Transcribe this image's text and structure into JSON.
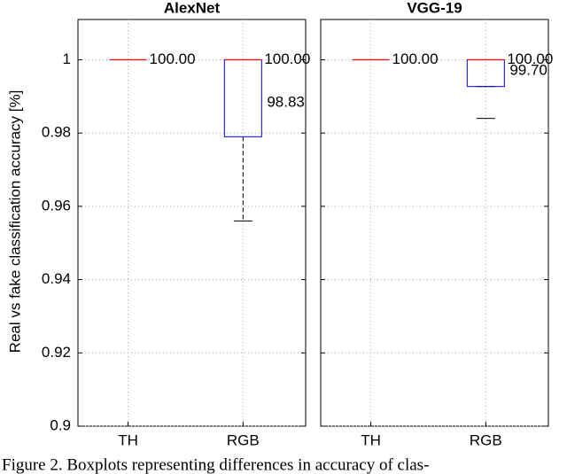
{
  "chart_data": [
    {
      "type": "box",
      "title": "AlexNet",
      "ylabel": "Real vs fake classification accuracy [%]",
      "categories": [
        "TH",
        "RGB"
      ],
      "boxes": [
        {
          "median": 1,
          "q1": 1,
          "q3": 1,
          "whisker_low": 1,
          "whisker_high": 1,
          "median_label": "100.00"
        },
        {
          "median": 1,
          "q1": 0.979,
          "q3": 1,
          "whisker_low": 0.956,
          "whisker_high": 1,
          "median_label": "100.00",
          "mean": 0.9883,
          "mean_label": "98.83"
        }
      ],
      "ylim": [
        0.9,
        1.011
      ],
      "yticks": [
        0.9,
        0.92,
        0.94,
        0.96,
        0.98,
        1
      ],
      "grid": true,
      "box_color": "#0000ff",
      "median_color": "#ff0000",
      "whisker_color": "#000000"
    },
    {
      "type": "box",
      "title": "VGG-19",
      "categories": [
        "TH",
        "RGB"
      ],
      "boxes": [
        {
          "median": 1,
          "q1": 1,
          "q3": 1,
          "whisker_low": 1,
          "whisker_high": 1,
          "median_label": "100.00"
        },
        {
          "median": 1,
          "q1": 0.9927,
          "q3": 1,
          "whisker_low": 0.9927,
          "whisker_high": 1,
          "median_label": "100.00",
          "mean": 0.997,
          "mean_label": "99.70",
          "outliers": [
            0.984
          ]
        }
      ],
      "ylim": [
        0.9,
        1.011
      ],
      "yticks": [
        0.9,
        0.92,
        0.94,
        0.96,
        0.98,
        1
      ],
      "grid": true,
      "box_color": "#0000ff",
      "median_color": "#ff0000",
      "whisker_color": "#000000"
    }
  ],
  "caption": "Figure 2. Boxplots representing differences in accuracy of clas-"
}
